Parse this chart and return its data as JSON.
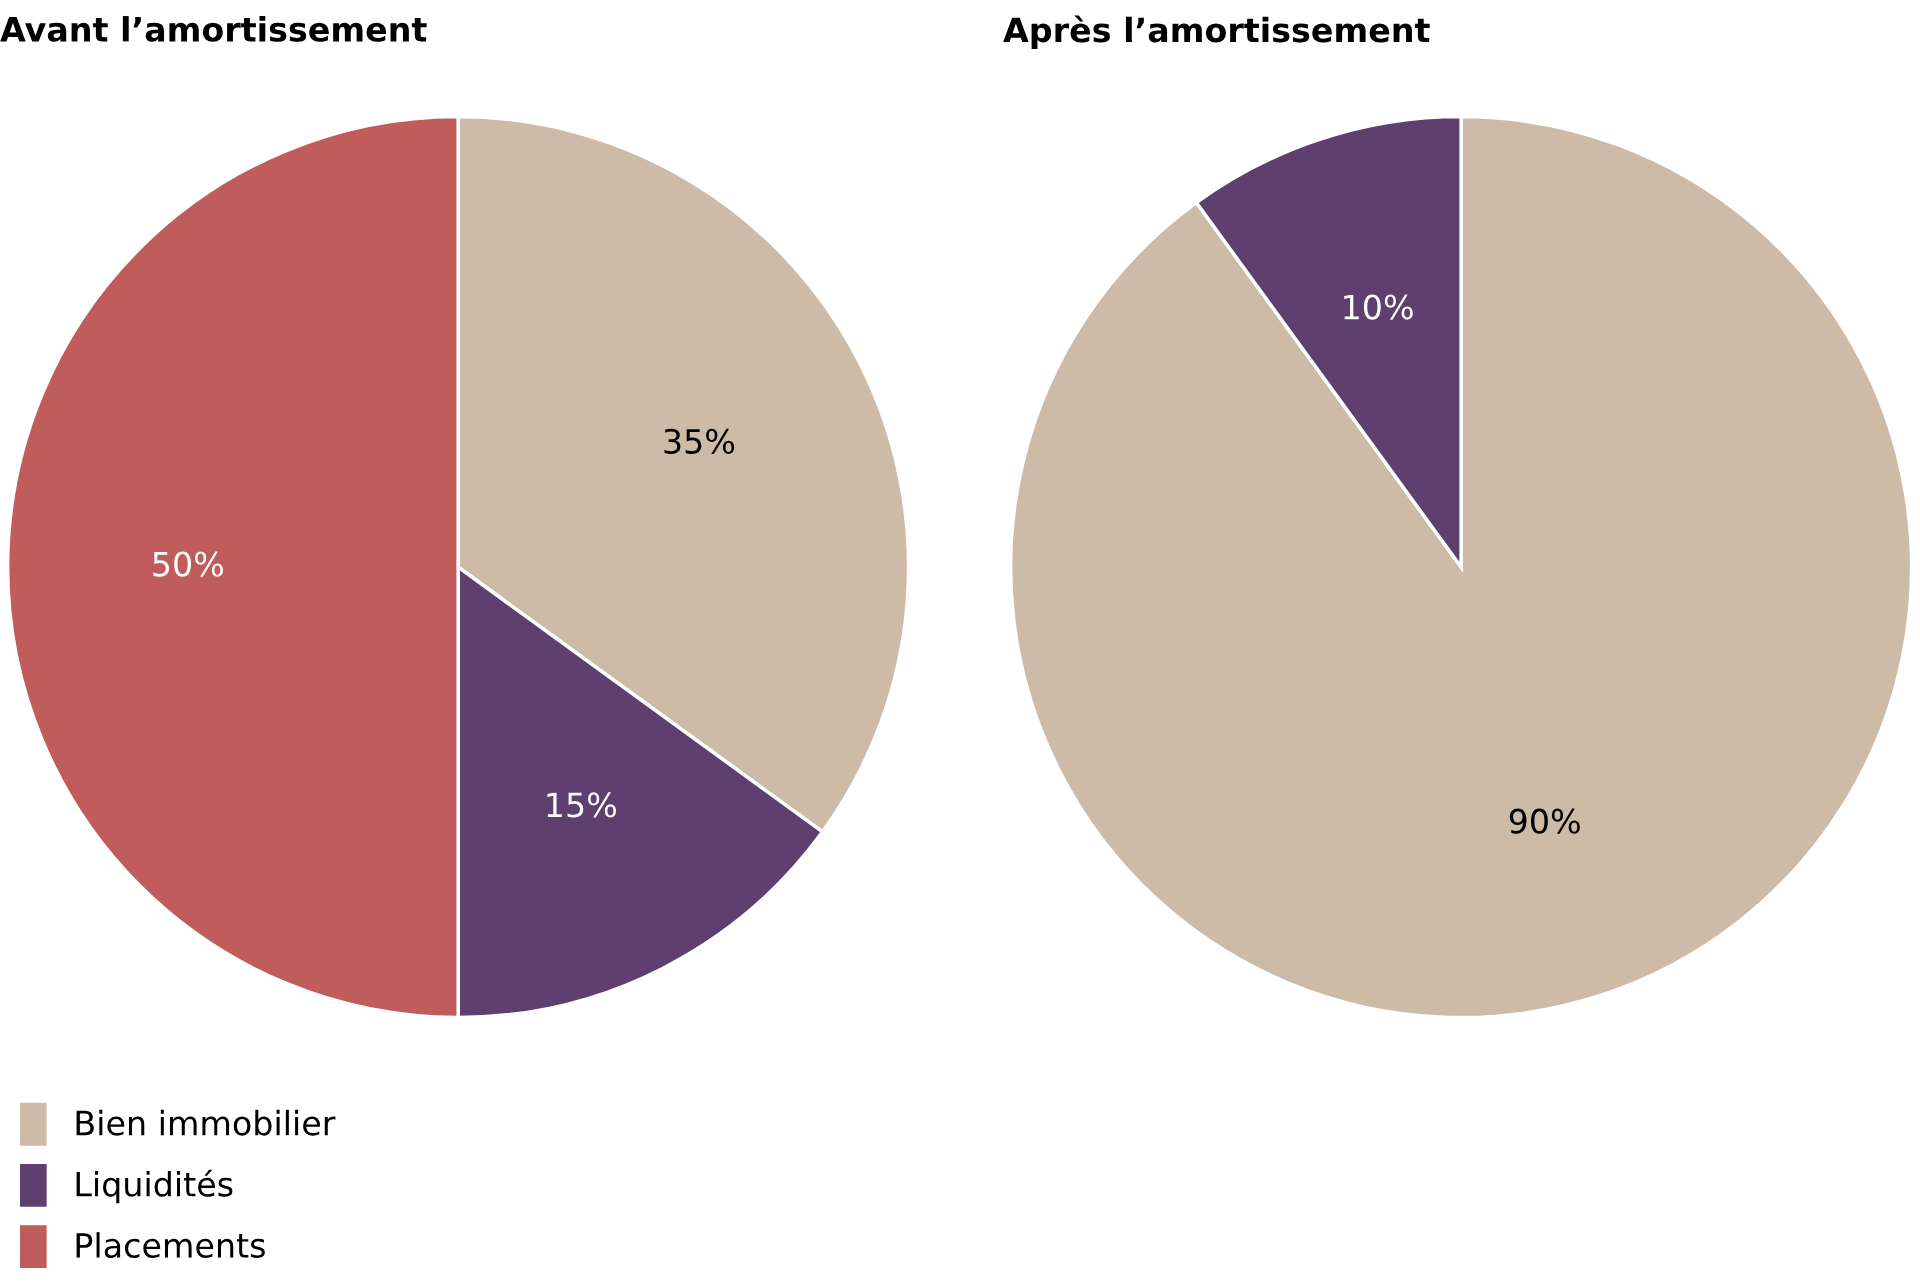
{
  "chart_data": [
    {
      "type": "pie",
      "title": "Avant l’amortissement",
      "categories": [
        "Bien immobilier",
        "Liquidités",
        "Placements"
      ],
      "values": [
        35,
        15,
        50
      ],
      "colors": [
        "#cdbba8",
        "#5f3f70",
        "#c05c5b"
      ],
      "data_labels": true,
      "value_labels": [
        "35%",
        "15%",
        "50%"
      ],
      "legend": "bottom"
    },
    {
      "type": "pie",
      "title": "Après l’amortissement",
      "categories": [
        null,
        null
      ],
      "values": [
        90,
        10
      ],
      "colors": [
        "#cdbba8",
        "#5f3f70"
      ],
      "data_labels": true,
      "value_labels": [
        "90%",
        "10%"
      ]
    }
  ]
}
